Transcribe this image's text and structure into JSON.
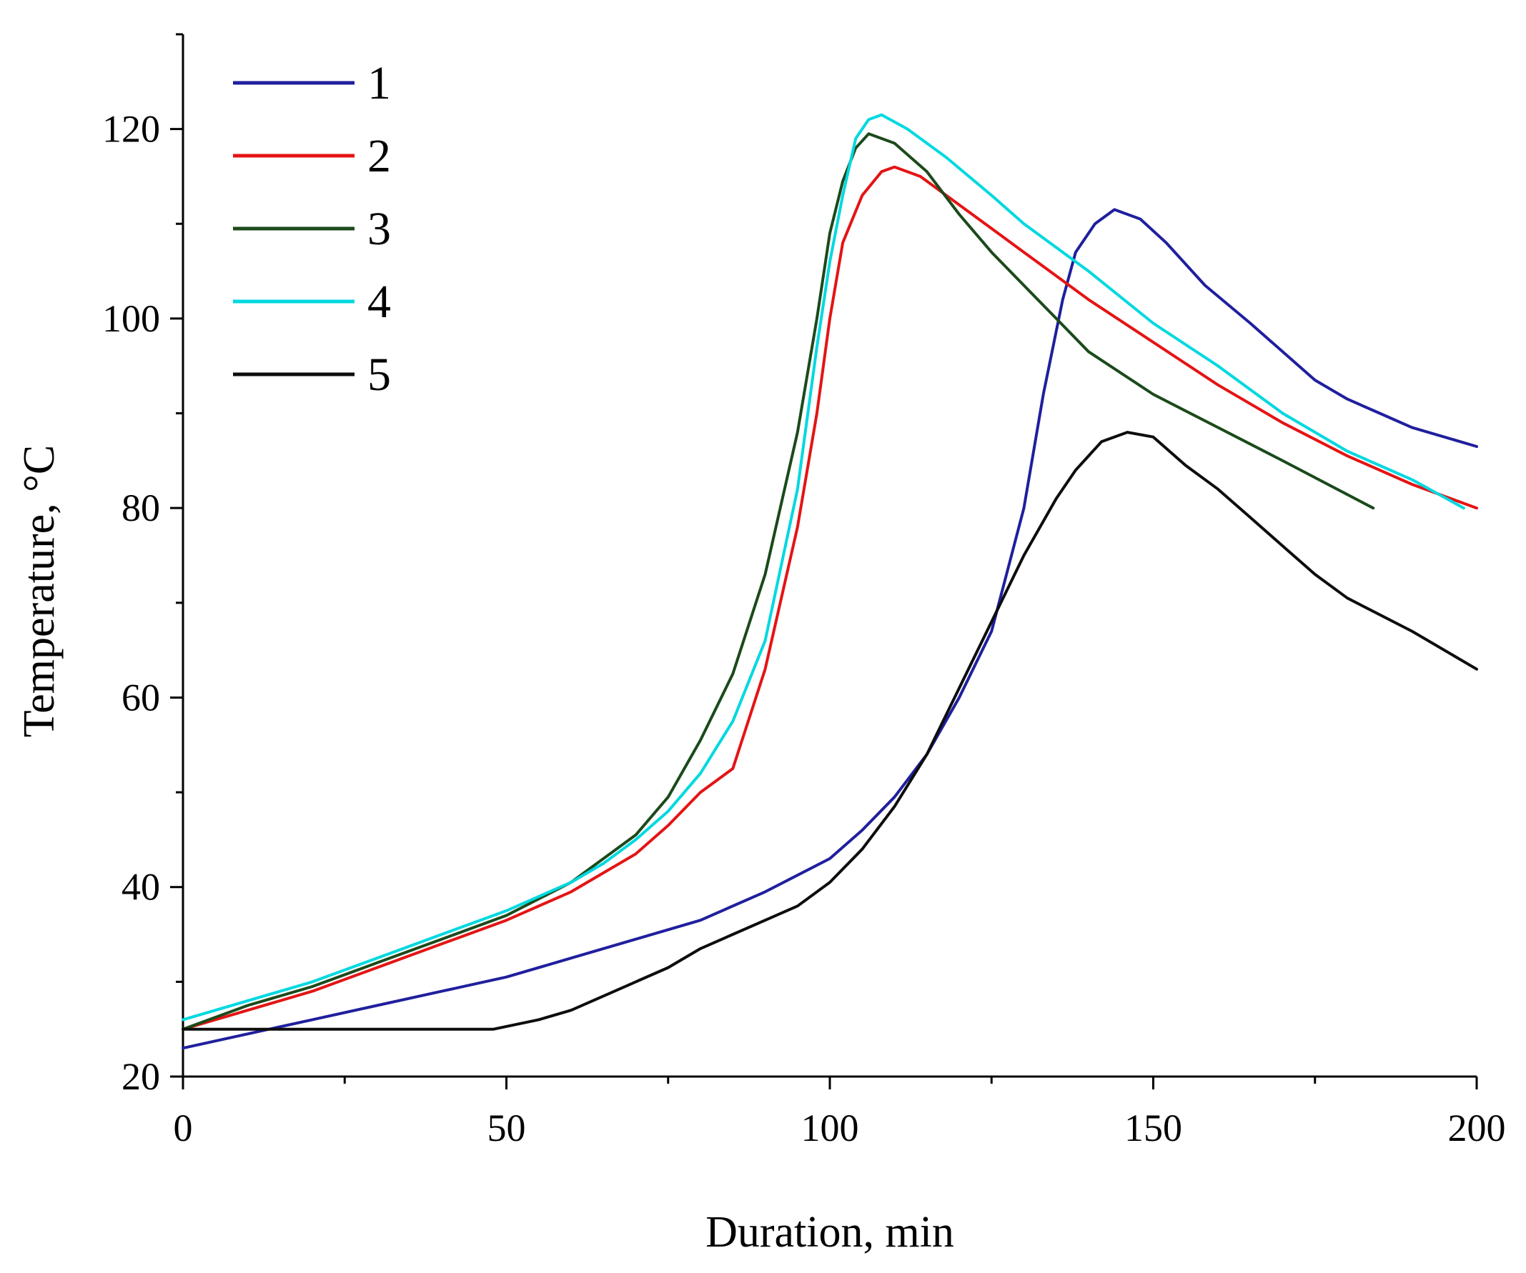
{
  "chart_data": {
    "type": "line",
    "title": "",
    "xlabel": "Duration, min",
    "ylabel": "Temperature, °C",
    "xlim": [
      0,
      200
    ],
    "ylim": [
      20,
      130
    ],
    "x_ticks": [
      0,
      50,
      100,
      150,
      200
    ],
    "x_tick_labels": [
      "0",
      "50",
      "100",
      "150",
      "200"
    ],
    "y_ticks": [
      20,
      40,
      60,
      80,
      100,
      120
    ],
    "y_tick_labels": [
      "20",
      "40",
      "60",
      "80",
      "100",
      "120"
    ],
    "grid": false,
    "legend_position": "top-left",
    "series": [
      {
        "name": "1",
        "color": "#1f1f9e",
        "points": [
          [
            0,
            23
          ],
          [
            10,
            24.5
          ],
          [
            20,
            26
          ],
          [
            30,
            27.5
          ],
          [
            40,
            29
          ],
          [
            50,
            30.5
          ],
          [
            60,
            32.5
          ],
          [
            70,
            34.5
          ],
          [
            80,
            36.5
          ],
          [
            90,
            39.5
          ],
          [
            100,
            43
          ],
          [
            105,
            46
          ],
          [
            110,
            49.5
          ],
          [
            115,
            54
          ],
          [
            120,
            60
          ],
          [
            125,
            67
          ],
          [
            130,
            80
          ],
          [
            133,
            92
          ],
          [
            136,
            102
          ],
          [
            138,
            107
          ],
          [
            141,
            110
          ],
          [
            144,
            111.5
          ],
          [
            148,
            110.5
          ],
          [
            152,
            108
          ],
          [
            158,
            103.5
          ],
          [
            165,
            99.5
          ],
          [
            170,
            96.5
          ],
          [
            175,
            93.5
          ],
          [
            180,
            91.5
          ],
          [
            185,
            90
          ],
          [
            190,
            88.5
          ],
          [
            200,
            86.5
          ]
        ]
      },
      {
        "name": "2",
        "color": "#e41414",
        "points": [
          [
            0,
            25
          ],
          [
            10,
            27
          ],
          [
            20,
            29
          ],
          [
            30,
            31.5
          ],
          [
            40,
            34
          ],
          [
            50,
            36.5
          ],
          [
            60,
            39.5
          ],
          [
            70,
            43.5
          ],
          [
            75,
            46.5
          ],
          [
            80,
            50
          ],
          [
            85,
            52.5
          ],
          [
            90,
            63
          ],
          [
            95,
            78
          ],
          [
            98,
            90
          ],
          [
            100,
            100
          ],
          [
            102,
            108
          ],
          [
            105,
            113
          ],
          [
            108,
            115.5
          ],
          [
            110,
            116
          ],
          [
            114,
            115
          ],
          [
            120,
            112
          ],
          [
            125,
            109.5
          ],
          [
            130,
            107
          ],
          [
            135,
            104.5
          ],
          [
            140,
            102
          ],
          [
            150,
            97.5
          ],
          [
            160,
            93
          ],
          [
            170,
            89
          ],
          [
            180,
            85.5
          ],
          [
            190,
            82.5
          ],
          [
            200,
            80
          ]
        ]
      },
      {
        "name": "3",
        "color": "#1b4a1b",
        "points": [
          [
            0,
            25
          ],
          [
            10,
            27.5
          ],
          [
            20,
            29.5
          ],
          [
            30,
            32
          ],
          [
            40,
            34.5
          ],
          [
            50,
            37
          ],
          [
            60,
            40.5
          ],
          [
            65,
            43
          ],
          [
            70,
            45.5
          ],
          [
            75,
            49.5
          ],
          [
            80,
            55.5
          ],
          [
            85,
            62.5
          ],
          [
            90,
            73
          ],
          [
            95,
            88
          ],
          [
            98,
            100
          ],
          [
            100,
            109
          ],
          [
            102,
            114.5
          ],
          [
            104,
            118
          ],
          [
            106,
            119.5
          ],
          [
            110,
            118.5
          ],
          [
            115,
            115.5
          ],
          [
            120,
            111
          ],
          [
            125,
            107
          ],
          [
            130,
            103.5
          ],
          [
            135,
            100
          ],
          [
            140,
            96.5
          ],
          [
            150,
            92
          ],
          [
            160,
            88.5
          ],
          [
            170,
            85
          ],
          [
            184,
            80
          ]
        ]
      },
      {
        "name": "4",
        "color": "#00d8e0",
        "points": [
          [
            0,
            26
          ],
          [
            10,
            28
          ],
          [
            20,
            30
          ],
          [
            30,
            32.5
          ],
          [
            40,
            35
          ],
          [
            50,
            37.5
          ],
          [
            60,
            40.5
          ],
          [
            65,
            42.5
          ],
          [
            70,
            45
          ],
          [
            75,
            48
          ],
          [
            80,
            52
          ],
          [
            85,
            57.5
          ],
          [
            90,
            66
          ],
          [
            95,
            82
          ],
          [
            98,
            97
          ],
          [
            100,
            106
          ],
          [
            102,
            113
          ],
          [
            104,
            119
          ],
          [
            106,
            121
          ],
          [
            108,
            121.5
          ],
          [
            112,
            120
          ],
          [
            118,
            117
          ],
          [
            125,
            113
          ],
          [
            130,
            110
          ],
          [
            140,
            105
          ],
          [
            150,
            99.5
          ],
          [
            160,
            95
          ],
          [
            170,
            90
          ],
          [
            180,
            86
          ],
          [
            190,
            83
          ],
          [
            198,
            80
          ]
        ]
      },
      {
        "name": "5",
        "color": "#0d0d0d",
        "points": [
          [
            0,
            25
          ],
          [
            10,
            25
          ],
          [
            20,
            25
          ],
          [
            30,
            25
          ],
          [
            40,
            25
          ],
          [
            48,
            25
          ],
          [
            55,
            26
          ],
          [
            60,
            27
          ],
          [
            65,
            28.5
          ],
          [
            70,
            30
          ],
          [
            75,
            31.5
          ],
          [
            80,
            33.5
          ],
          [
            85,
            35
          ],
          [
            90,
            36.5
          ],
          [
            95,
            38
          ],
          [
            100,
            40.5
          ],
          [
            105,
            44
          ],
          [
            110,
            48.5
          ],
          [
            115,
            54
          ],
          [
            120,
            61
          ],
          [
            125,
            68
          ],
          [
            130,
            75
          ],
          [
            135,
            81
          ],
          [
            138,
            84
          ],
          [
            142,
            87
          ],
          [
            146,
            88
          ],
          [
            150,
            87.5
          ],
          [
            155,
            84.5
          ],
          [
            160,
            82
          ],
          [
            165,
            79
          ],
          [
            170,
            76
          ],
          [
            175,
            73
          ],
          [
            180,
            70.5
          ],
          [
            190,
            67
          ],
          [
            200,
            63
          ]
        ]
      }
    ]
  }
}
